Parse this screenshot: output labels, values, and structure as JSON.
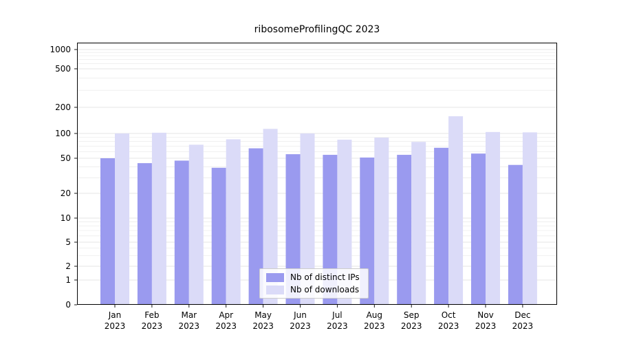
{
  "title": "ribosomeProfilingQC 2023",
  "chart_data": {
    "type": "bar",
    "categories": [
      "Jan",
      "Feb",
      "Mar",
      "Apr",
      "May",
      "Jun",
      "Jul",
      "Aug",
      "Sep",
      "Oct",
      "Nov",
      "Dec"
    ],
    "year": "2023",
    "series": [
      {
        "name": "Nb of distinct IPs",
        "color": "#9a9aef",
        "values": [
          50,
          44,
          47,
          39,
          66,
          56,
          55,
          51,
          55,
          67,
          57,
          42
        ]
      },
      {
        "name": "Nb of downloads",
        "color": "#dbdbf8",
        "values": [
          100,
          102,
          73,
          85,
          113,
          100,
          84,
          89,
          79,
          158,
          104,
          103
        ]
      }
    ],
    "title": "ribosomeProfilingQC 2023",
    "xlabel": "",
    "ylabel": "",
    "yticks": [
      0,
      1,
      2,
      5,
      10,
      20,
      50,
      100,
      200,
      500,
      1000
    ],
    "yscale": "symlog",
    "ylim": [
      0,
      1200
    ],
    "grid": "horizontal-minor",
    "legend_position": "lower center"
  }
}
